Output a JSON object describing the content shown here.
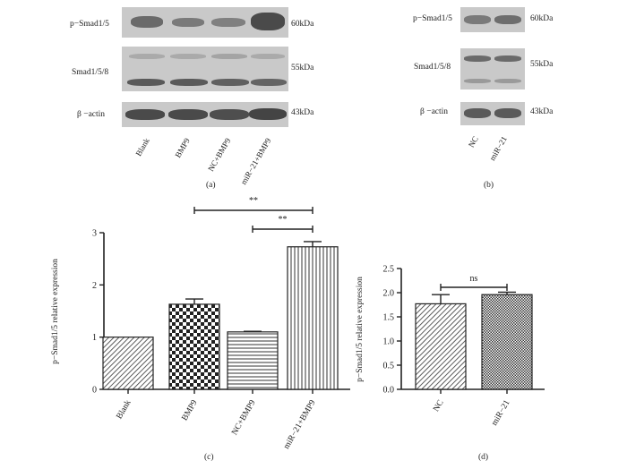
{
  "panel_a": {
    "letter": "(a)",
    "rows": [
      {
        "label": "p−Smad1/5",
        "kda": "60kDa"
      },
      {
        "label": "Smad1/5/8",
        "kda": "55kDa"
      },
      {
        "label": "β −actin",
        "kda": "43kDa"
      }
    ],
    "lanes": [
      "Blank",
      "BMP9",
      "NC+BMP9",
      "miR−21+BMP9"
    ]
  },
  "panel_b": {
    "letter": "(b)",
    "rows": [
      {
        "label": "p−Smad1/5",
        "kda": "60kDa"
      },
      {
        "label": "Smad1/5/8",
        "kda": "55kDa"
      },
      {
        "label": "β −actin",
        "kda": "43kDa"
      }
    ],
    "lanes": [
      "NC",
      "miR−21"
    ]
  },
  "chart_data": [
    {
      "panel": "(c)",
      "type": "bar",
      "ylabel": "p−Smad1/5 relative expression",
      "categories": [
        "Blank",
        "BMP9",
        "NC+BMP9",
        "miR−21+BMP9"
      ],
      "values": [
        1.0,
        1.63,
        1.1,
        2.73
      ],
      "errors": [
        0.0,
        0.1,
        0.01,
        0.1
      ],
      "ylim": [
        0,
        3
      ],
      "yticks": [
        "0",
        "1",
        "2",
        "3"
      ],
      "significance": [
        {
          "from": 1,
          "to": 3,
          "label": "**"
        },
        {
          "from": 2,
          "to": 3,
          "label": "**"
        }
      ]
    },
    {
      "panel": "(d)",
      "type": "bar",
      "ylabel": "p−Smad1/5 relative expression",
      "categories": [
        "NC",
        "miR−21"
      ],
      "values": [
        1.77,
        1.96
      ],
      "errors": [
        0.19,
        0.05
      ],
      "ylim": [
        0,
        2.5
      ],
      "yticks": [
        "0.0",
        "0.5",
        "1.0",
        "1.5",
        "2.0",
        "2.5"
      ],
      "significance": [
        {
          "from": 0,
          "to": 1,
          "label": "ns"
        }
      ]
    }
  ]
}
